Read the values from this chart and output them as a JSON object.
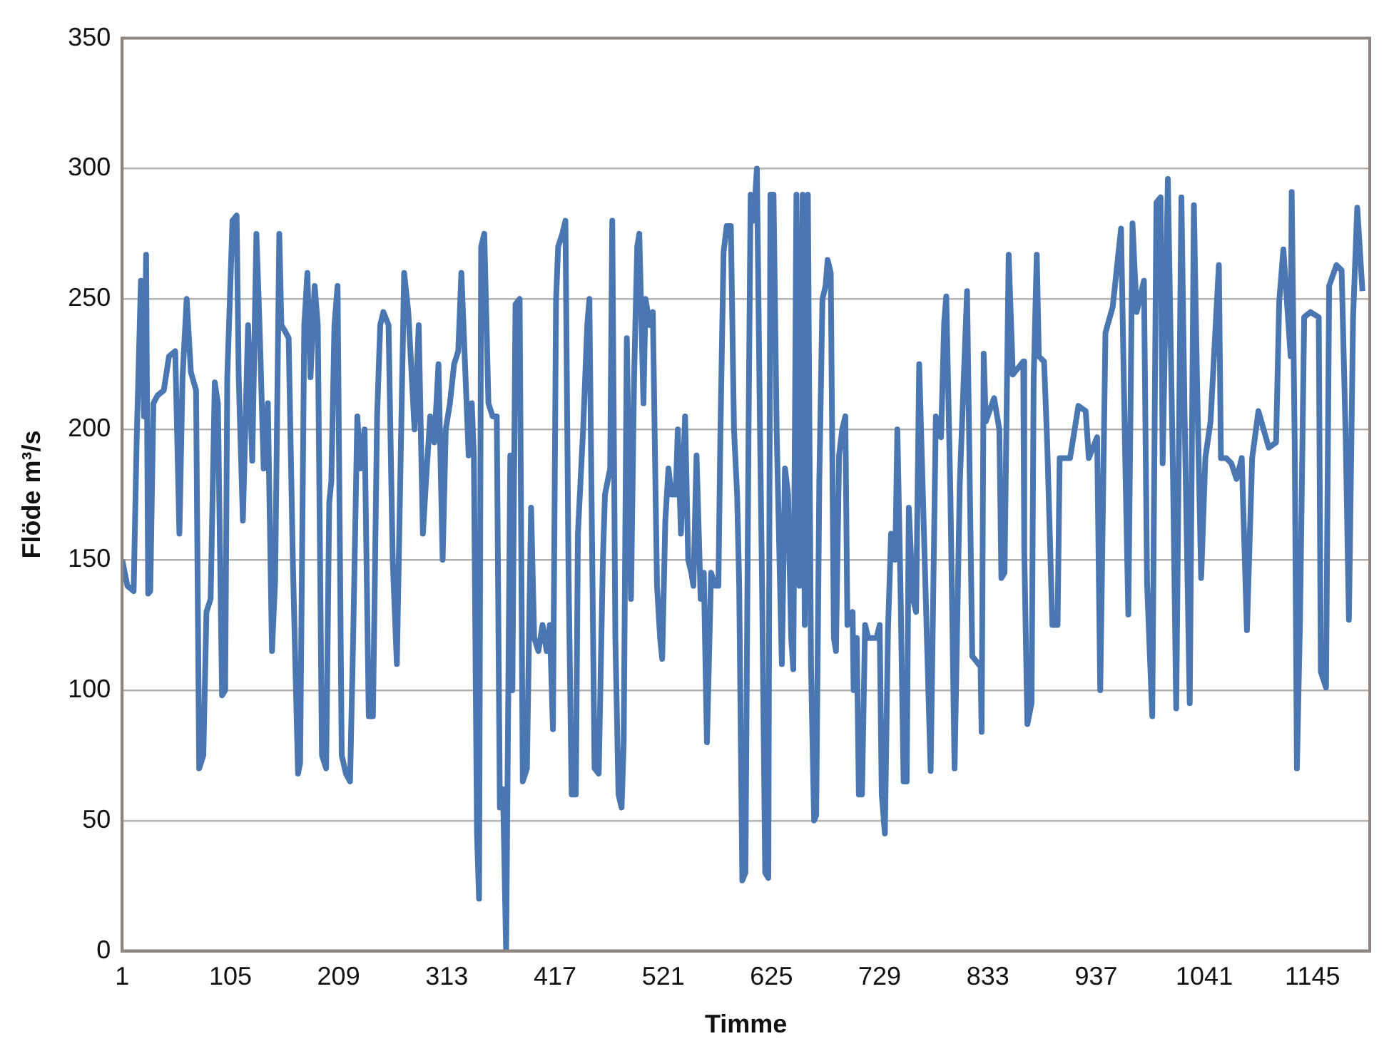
{
  "chart_data": {
    "type": "line",
    "xlabel": "Timme",
    "ylabel": "Flöde m³/s",
    "xlim": [
      1,
      1200
    ],
    "xticks": [
      1,
      105,
      209,
      313,
      417,
      521,
      625,
      729,
      833,
      937,
      1041,
      1145
    ],
    "ylim": [
      0,
      350
    ],
    "yticks": [
      0,
      50,
      100,
      150,
      200,
      250,
      300,
      350
    ],
    "grid": "y",
    "marker": "none",
    "line_style": "solid",
    "series": [
      {
        "color": "#4a76b2",
        "x": [
          1,
          6,
          12,
          15,
          19,
          22,
          24,
          26,
          28,
          31,
          35,
          41,
          46,
          52,
          56,
          59,
          63,
          67,
          72,
          75,
          79,
          82,
          86,
          90,
          93,
          97,
          100,
          102,
          107,
          111,
          113,
          117,
          122,
          126,
          130,
          133,
          137,
          141,
          145,
          148,
          152,
          154,
          157,
          161,
          165,
          170,
          172,
          176,
          179,
          182,
          186,
          189,
          193,
          197,
          200,
          202,
          205,
          208,
          212,
          216,
          220,
          223,
          227,
          230,
          234,
          238,
          242,
          246,
          249,
          252,
          257,
          261,
          265,
          268,
          272,
          276,
          282,
          286,
          290,
          293,
          297,
          301,
          305,
          309,
          312,
          316,
          320,
          324,
          327,
          330,
          334,
          337,
          339,
          342,
          344,
          346,
          349,
          353,
          357,
          361,
          364,
          367,
          370,
          374,
          376,
          379,
          383,
          386,
          390,
          394,
          397,
          401,
          405,
          409,
          412,
          415,
          418,
          420,
          424,
          427,
          430,
          433,
          437,
          439,
          444,
          448,
          450,
          455,
          459,
          463,
          465,
          470,
          472,
          475,
          478,
          481,
          483,
          486,
          490,
          493,
          496,
          498,
          502,
          504,
          508,
          511,
          515,
          518,
          520,
          523,
          526,
          529,
          533,
          535,
          538,
          542,
          545,
          548,
          550,
          553,
          557,
          560,
          563,
          567,
          571,
          574,
          576,
          579,
          582,
          586,
          589,
          592,
          594,
          597,
          600,
          603,
          605,
          608,
          611,
          614,
          616,
          619,
          622,
          624,
          627,
          630,
          633,
          635,
          638,
          641,
          644,
          646,
          649,
          652,
          655,
          657,
          660,
          663,
          666,
          668,
          671,
          674,
          677,
          679,
          682,
          685,
          687,
          690,
          693,
          696,
          698,
          703,
          704,
          707,
          709,
          712,
          715,
          718,
          722,
          726,
          729,
          731,
          734,
          737,
          740,
          744,
          746,
          749,
          752,
          755,
          757,
          761,
          764,
          767,
          778,
          783,
          788,
          791,
          793,
          797,
          801,
          806,
          813,
          818,
          826,
          827,
          829,
          831,
          839,
          844,
          846,
          849,
          853,
          857,
          867,
          868,
          871,
          875,
          877,
          880,
          882,
          887,
          890,
          895,
          900,
          902,
          912,
          920,
          927,
          930,
          938,
          941,
          946,
          953,
          961,
          965,
          968,
          972,
          976,
          983,
          986,
          991,
          995,
          999,
          1001,
          1006,
          1011,
          1014,
          1019,
          1022,
          1027,
          1031,
          1034,
          1038,
          1042,
          1047,
          1055,
          1057,
          1062,
          1067,
          1072,
          1077,
          1082,
          1087,
          1093,
          1103,
          1110,
          1113,
          1117,
          1124,
          1125,
          1128,
          1130,
          1133,
          1137,
          1143,
          1151,
          1153,
          1158,
          1161,
          1168,
          1173,
          1177,
          1180,
          1184,
          1188,
          1193
        ],
        "values": [
          150,
          140,
          138,
          197,
          257,
          205,
          267,
          137,
          138,
          210,
          213,
          215,
          228,
          230,
          160,
          220,
          250,
          222,
          215,
          70,
          75,
          130,
          135,
          218,
          210,
          98,
          100,
          220,
          280,
          282,
          220,
          165,
          240,
          188,
          275,
          240,
          185,
          210,
          115,
          142,
          275,
          240,
          238,
          235,
          150,
          68,
          72,
          240,
          260,
          220,
          255,
          240,
          75,
          70,
          172,
          180,
          240,
          255,
          75,
          68,
          65,
          120,
          205,
          185,
          200,
          90,
          90,
          205,
          240,
          245,
          240,
          150,
          110,
          175,
          260,
          245,
          200,
          240,
          160,
          180,
          205,
          195,
          225,
          150,
          200,
          210,
          225,
          230,
          260,
          230,
          190,
          210,
          190,
          45,
          20,
          270,
          275,
          210,
          205,
          205,
          55,
          62,
          0,
          190,
          100,
          248,
          250,
          65,
          70,
          170,
          120,
          115,
          125,
          115,
          125,
          85,
          250,
          270,
          275,
          280,
          145,
          60,
          60,
          160,
          200,
          240,
          250,
          70,
          68,
          150,
          175,
          185,
          280,
          120,
          60,
          55,
          80,
          235,
          135,
          220,
          270,
          275,
          210,
          250,
          240,
          245,
          140,
          120,
          112,
          165,
          185,
          175,
          175,
          200,
          160,
          205,
          150,
          145,
          140,
          190,
          135,
          145,
          80,
          145,
          140,
          140,
          200,
          268,
          278,
          278,
          200,
          175,
          140,
          27,
          30,
          200,
          290,
          280,
          300,
          200,
          140,
          30,
          28,
          290,
          290,
          200,
          145,
          110,
          185,
          175,
          120,
          108,
          290,
          140,
          290,
          125,
          290,
          110,
          50,
          52,
          180,
          250,
          255,
          265,
          260,
          120,
          115,
          190,
          200,
          205,
          125,
          130,
          100,
          120,
          60,
          60,
          125,
          120,
          120,
          120,
          125,
          60,
          45,
          123,
          160,
          150,
          200,
          140,
          65,
          65,
          170,
          135,
          130,
          225,
          69,
          205,
          197,
          241,
          251,
          175,
          70,
          179,
          253,
          113,
          109,
          84,
          229,
          203,
          212,
          200,
          143,
          145,
          267,
          221,
          226,
          153,
          87,
          95,
          219,
          267,
          228,
          226,
          195,
          125,
          125,
          189,
          189,
          209,
          207,
          189,
          197,
          100,
          237,
          247,
          277,
          189,
          129,
          279,
          245,
          257,
          141,
          90,
          287,
          289,
          187,
          296,
          181,
          93,
          289,
          207,
          95,
          286,
          219,
          143,
          189,
          203,
          263,
          189,
          189,
          187,
          181,
          189,
          123,
          189,
          207,
          193,
          195,
          249,
          269,
          228,
          291,
          191,
          70,
          127,
          243,
          245,
          243,
          107,
          101,
          255,
          263,
          261,
          195,
          127,
          243,
          285,
          253
        ]
      }
    ]
  }
}
